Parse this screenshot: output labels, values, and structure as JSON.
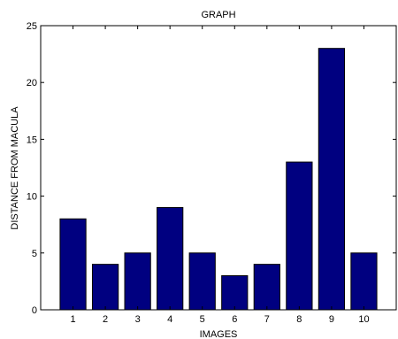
{
  "chart_data": {
    "type": "bar",
    "title": "GRAPH",
    "xlabel": "IMAGES",
    "ylabel": "DISTANCE FROM MACULA",
    "categories": [
      "1",
      "2",
      "3",
      "4",
      "5",
      "6",
      "7",
      "8",
      "9",
      "10"
    ],
    "values": [
      8,
      4,
      5,
      9,
      5,
      3,
      4,
      13,
      23,
      5
    ],
    "ylim": [
      0,
      25
    ],
    "xlim": [
      0,
      11
    ],
    "yticks": [
      "0",
      "5",
      "10",
      "15",
      "20",
      "25"
    ],
    "grid": false,
    "legend": "none",
    "bar_color": "#000080",
    "bar_edge_color": "#000000"
  }
}
